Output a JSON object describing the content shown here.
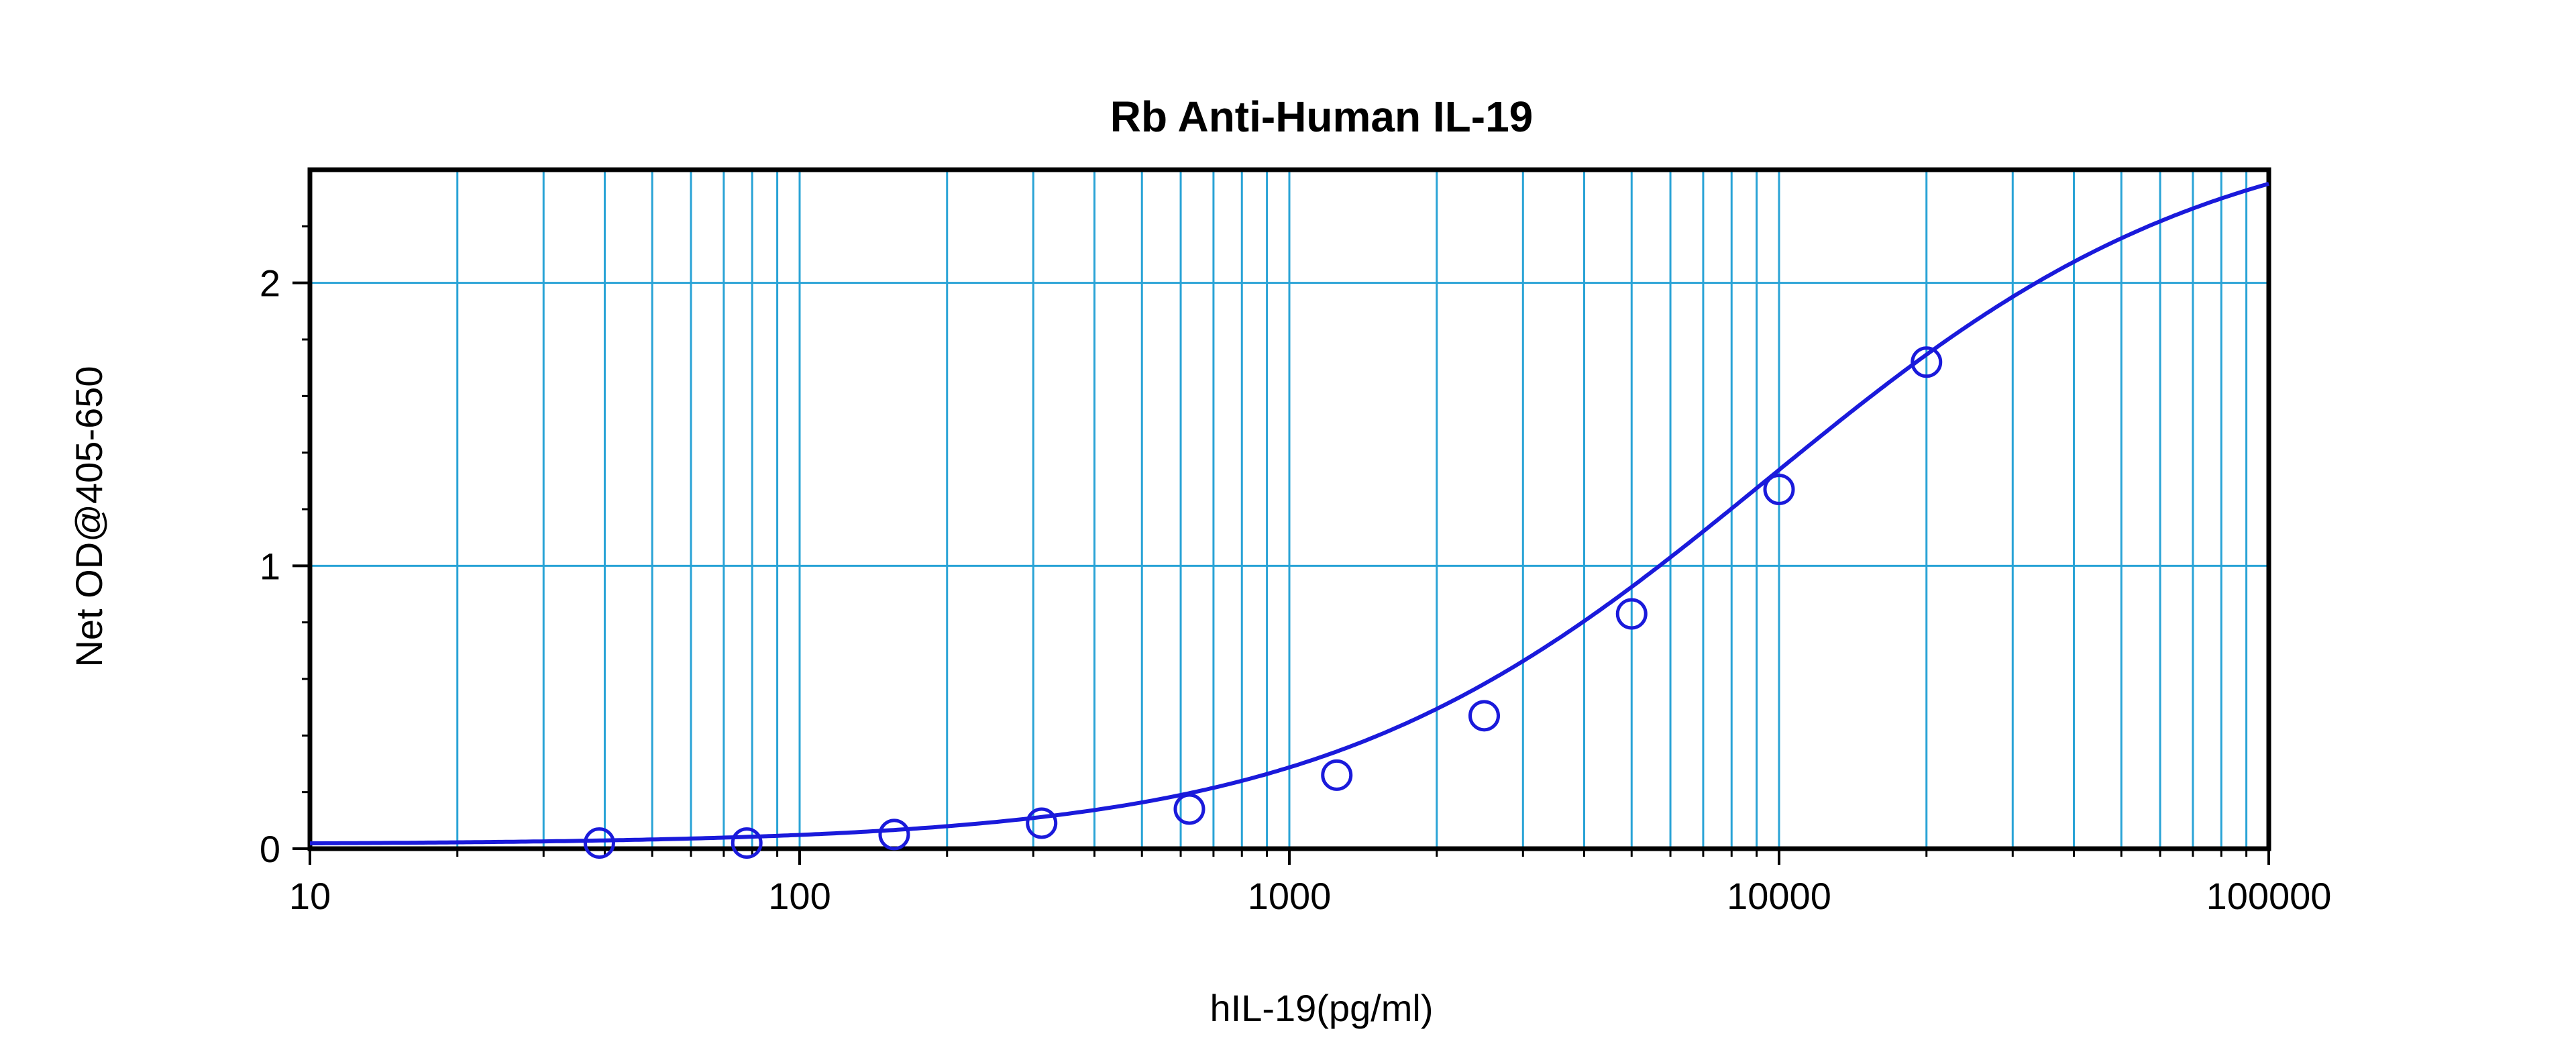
{
  "chart_data": {
    "type": "scatter",
    "title": "Rb Anti-Human IL-19",
    "xlabel": "hIL-19(pg/ml)",
    "ylabel": "Net OD@405-650",
    "x_scale": "log",
    "xlim": [
      10,
      100000
    ],
    "ylim": [
      0,
      2.4
    ],
    "grid": true,
    "x_tick_labels": [
      "10",
      "100",
      "1000",
      "10000",
      "100000"
    ],
    "y_tick_labels": [
      "0",
      "1",
      "2"
    ],
    "series": [
      {
        "points": [
          {
            "x": 39,
            "y": 0.02
          },
          {
            "x": 78,
            "y": 0.02
          },
          {
            "x": 156,
            "y": 0.05
          },
          {
            "x": 312,
            "y": 0.09
          },
          {
            "x": 625,
            "y": 0.14
          },
          {
            "x": 1250,
            "y": 0.26
          },
          {
            "x": 2500,
            "y": 0.47
          },
          {
            "x": 5000,
            "y": 0.83
          },
          {
            "x": 10000,
            "y": 1.27
          },
          {
            "x": 20000,
            "y": 1.72
          }
        ],
        "fit": {
          "type": "4PL",
          "bottom": 0.015,
          "top": 2.6,
          "ec50": 9500,
          "hill": 0.95
        }
      }
    ],
    "colors": {
      "data": "#1a1adb",
      "grid": "#29a3d6",
      "axis": "#000000"
    }
  }
}
